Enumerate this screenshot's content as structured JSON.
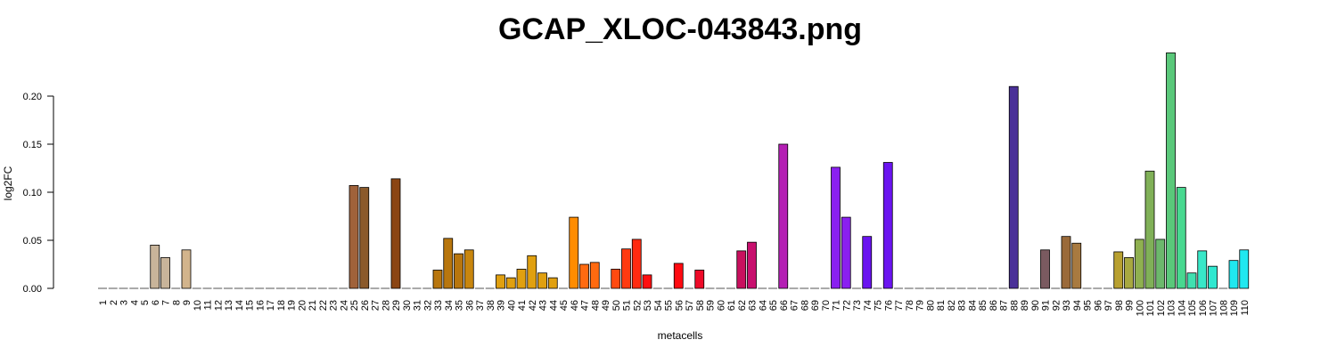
{
  "chart_data": {
    "type": "bar",
    "title": "GCAP_XLOC-043843.png",
    "xlabel": "metacells",
    "ylabel": "log2FC",
    "ylim": [
      0,
      0.25
    ],
    "yticks": [
      "0.00",
      "0.05",
      "0.10",
      "0.15",
      "0.20"
    ],
    "grid": false,
    "categories": [
      "1",
      "2",
      "3",
      "4",
      "5",
      "6",
      "7",
      "8",
      "9",
      "10",
      "11",
      "12",
      "13",
      "14",
      "15",
      "16",
      "17",
      "18",
      "19",
      "20",
      "21",
      "22",
      "23",
      "24",
      "25",
      "26",
      "27",
      "28",
      "29",
      "30",
      "31",
      "32",
      "33",
      "34",
      "35",
      "36",
      "37",
      "38",
      "39",
      "40",
      "41",
      "42",
      "43",
      "44",
      "45",
      "46",
      "47",
      "48",
      "49",
      "50",
      "51",
      "52",
      "53",
      "54",
      "55",
      "56",
      "57",
      "58",
      "59",
      "60",
      "61",
      "62",
      "63",
      "64",
      "65",
      "66",
      "67",
      "68",
      "69",
      "70",
      "71",
      "72",
      "73",
      "74",
      "75",
      "76",
      "77",
      "78",
      "79",
      "80",
      "81",
      "82",
      "83",
      "84",
      "85",
      "86",
      "87",
      "88",
      "89",
      "90",
      "91",
      "92",
      "93",
      "94",
      "95",
      "96",
      "97",
      "98",
      "99",
      "100",
      "101",
      "102",
      "103",
      "104",
      "105",
      "106",
      "107",
      "108",
      "109",
      "110"
    ],
    "values": [
      0,
      0,
      0,
      0,
      0,
      0.045,
      0.032,
      0,
      0.04,
      0,
      0,
      0,
      0,
      0,
      0,
      0,
      0,
      0,
      0,
      0,
      0,
      0,
      0,
      0,
      0.107,
      0.105,
      0,
      0,
      0.114,
      0,
      0,
      0,
      0.019,
      0.052,
      0.036,
      0.04,
      0,
      0,
      0.014,
      0.011,
      0.02,
      0.034,
      0.016,
      0.011,
      0,
      0.074,
      0.025,
      0.027,
      0,
      0.02,
      0.041,
      0.051,
      0.014,
      0,
      0,
      0.026,
      0,
      0.019,
      0,
      0,
      0,
      0.039,
      0.048,
      0,
      0,
      0.15,
      0,
      0,
      0,
      0,
      0.126,
      0.074,
      0,
      0.054,
      0,
      0.131,
      0,
      0,
      0,
      0,
      0,
      0,
      0,
      0,
      0,
      0,
      0,
      0.21,
      0,
      0,
      0.04,
      0,
      0.054,
      0.047,
      0,
      0,
      0,
      0.038,
      0.032,
      0.051,
      0.122,
      0.051,
      0.245,
      0.105,
      0.016,
      0.039,
      0.023,
      0,
      0.029,
      0.04
    ],
    "colors": [
      "#c8b49a",
      "#c8b49a",
      "#c8b49a",
      "#c8b49a",
      "#c8b49a",
      "#c8b49a",
      "#c8b49a",
      "#c8b49a",
      "#d2b48c",
      "#d2b48c",
      "#d2b48c",
      "#d2b48c",
      "#d2b48c",
      "#d2b48c",
      "#d2b48c",
      "#d2b48c",
      "#d2b48c",
      "#d2b48c",
      "#d2b48c",
      "#d2b48c",
      "#d2b48c",
      "#d2b48c",
      "#d2b48c",
      "#d2b48c",
      "#a0623a",
      "#8b5a2b",
      "#8b5a2b",
      "#8b5a2b",
      "#8b4513",
      "#8b4513",
      "#8b4513",
      "#8b4513",
      "#b8760e",
      "#b8760e",
      "#b8760e",
      "#c8860e",
      "#c8860e",
      "#c8860e",
      "#e0a010",
      "#e0a010",
      "#e0a010",
      "#e0a010",
      "#e0a010",
      "#e0a010",
      "#ff8c00",
      "#ff8c00",
      "#ff6a10",
      "#ff6a10",
      "#ff5a10",
      "#ff4a10",
      "#ff3a10",
      "#ff2a10",
      "#ff1010",
      "#ff1010",
      "#ff1010",
      "#ff0a10",
      "#ff0a10",
      "#ee0a28",
      "#ee0a28",
      "#ee0a28",
      "#ee0a28",
      "#c8105e",
      "#c8106e",
      "#c8106e",
      "#c8106e",
      "#b41eb4",
      "#b41eb4",
      "#b41eb4",
      "#b41eb4",
      "#b41eb4",
      "#8a20f0",
      "#8a20f0",
      "#8a20f0",
      "#6a14f0",
      "#6a14f0",
      "#6a14f0",
      "#5a3a9c",
      "#5a3a9c",
      "#5a3a9c",
      "#5a3a9c",
      "#5a3a9c",
      "#5a3a9c",
      "#5a3a9c",
      "#5a3a9c",
      "#5a3a9c",
      "#5a3a9c",
      "#5a3a9c",
      "#4a3098",
      "#7a5a60",
      "#7a5a60",
      "#7a5a60",
      "#7a5a60",
      "#9a6a3a",
      "#a87a40",
      "#a87a40",
      "#a87a40",
      "#a87a40",
      "#b8a030",
      "#a8a840",
      "#8fb050",
      "#80b058",
      "#6cb86c",
      "#5ac87a",
      "#48d890",
      "#40e0b0",
      "#38e8c8",
      "#30e8d0",
      "#28e8d8",
      "#20e8f0",
      "#20e8f0"
    ]
  }
}
